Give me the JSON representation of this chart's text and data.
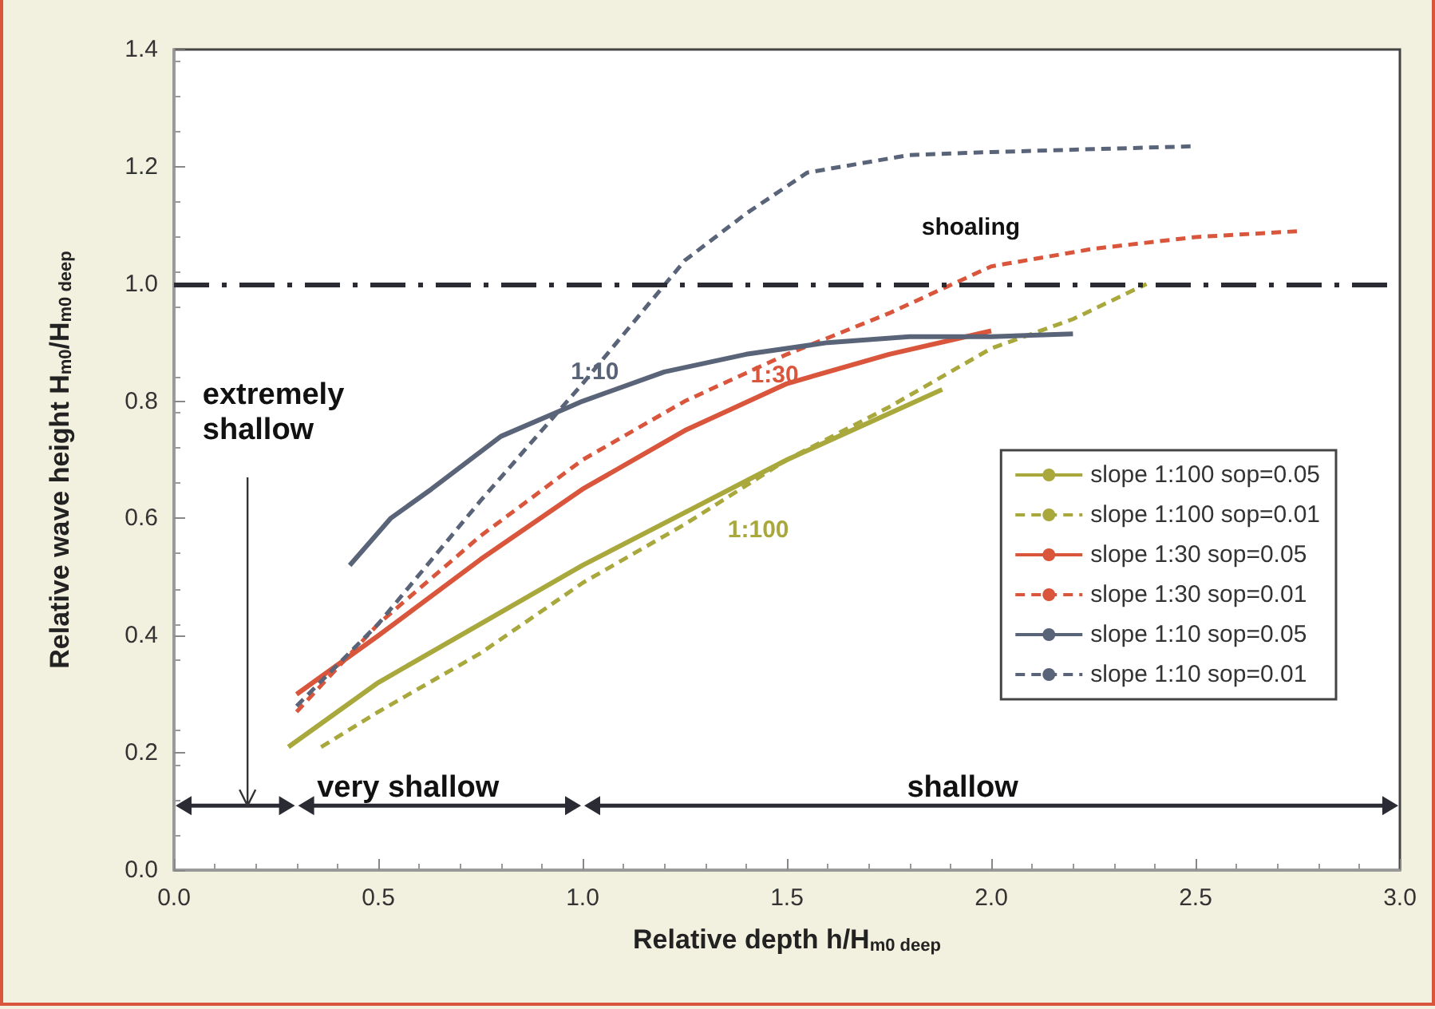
{
  "chart_data": {
    "type": "line",
    "xlabel": "Relative depth h/H$_{m0 deep}$",
    "ylabel": "Relative wave height H$_{m0}$/H$_{m0 deep}$",
    "xlim": [
      0,
      3
    ],
    "ylim": [
      0,
      1.4
    ],
    "xticks": [
      {
        "value": 0,
        "label": "0.0"
      },
      {
        "value": 0.5,
        "label": "0.5"
      },
      {
        "value": 1,
        "label": "1.0"
      },
      {
        "value": 1.5,
        "label": "1.5"
      },
      {
        "value": 2,
        "label": "2.0"
      },
      {
        "value": 2.5,
        "label": "2.5"
      },
      {
        "value": 3,
        "label": "3.0"
      }
    ],
    "yticks": [
      {
        "value": 0,
        "label": "0.0"
      },
      {
        "value": 0.2,
        "label": "0.2"
      },
      {
        "value": 0.4,
        "label": "0.4"
      },
      {
        "value": 0.6,
        "label": "0.6"
      },
      {
        "value": 0.8,
        "label": "0.8"
      },
      {
        "value": 1,
        "label": "1.0"
      },
      {
        "value": 1.2,
        "label": "1.2"
      },
      {
        "value": 1.4,
        "label": "1.4"
      }
    ],
    "grid": false,
    "legend": "right",
    "marker": "none",
    "series": [
      {
        "name": "slope 1:100 sop=0.05",
        "color": "#a8a83c",
        "line_style": "solid",
        "x": [
          0.28,
          0.5,
          0.75,
          1.0,
          1.25,
          1.5,
          1.88
        ],
        "values": [
          0.21,
          0.32,
          0.42,
          0.52,
          0.61,
          0.7,
          0.82
        ]
      },
      {
        "name": "slope 1:100 sop=0.01",
        "color": "#a8a83c",
        "line_style": "dashed",
        "x": [
          0.36,
          0.5,
          0.75,
          1.0,
          1.25,
          1.5,
          1.75,
          2.0,
          2.2,
          2.38
        ],
        "values": [
          0.21,
          0.27,
          0.37,
          0.49,
          0.59,
          0.7,
          0.79,
          0.89,
          0.94,
          1.0
        ]
      },
      {
        "name": "slope 1:30 sop=0.05",
        "color": "#d9553b",
        "line_style": "solid",
        "x": [
          0.3,
          0.5,
          0.75,
          1.0,
          1.25,
          1.5,
          1.75,
          2.0
        ],
        "values": [
          0.3,
          0.4,
          0.53,
          0.65,
          0.75,
          0.83,
          0.88,
          0.92
        ]
      },
      {
        "name": "slope 1:30 sop=0.01",
        "color": "#d9553b",
        "line_style": "dashed",
        "x": [
          0.3,
          0.5,
          0.75,
          1.0,
          1.25,
          1.5,
          1.75,
          2.0,
          2.25,
          2.5,
          2.75
        ],
        "values": [
          0.27,
          0.42,
          0.57,
          0.7,
          0.8,
          0.88,
          0.95,
          1.03,
          1.06,
          1.08,
          1.09
        ]
      },
      {
        "name": "slope 1:10 sop=0.05",
        "color": "#5a6478",
        "line_style": "solid",
        "x": [
          0.43,
          0.53,
          0.63,
          0.8,
          1.0,
          1.2,
          1.4,
          1.6,
          1.8,
          2.0,
          2.2
        ],
        "values": [
          0.52,
          0.6,
          0.65,
          0.74,
          0.8,
          0.85,
          0.88,
          0.9,
          0.91,
          0.91,
          0.915
        ]
      },
      {
        "name": "slope 1:10 sop=0.01",
        "color": "#5a6478",
        "line_style": "dashed",
        "x": [
          0.3,
          0.5,
          0.75,
          1.0,
          1.25,
          1.4,
          1.55,
          1.8,
          2.0,
          2.25,
          2.5
        ],
        "values": [
          0.28,
          0.42,
          0.63,
          0.83,
          1.04,
          1.12,
          1.19,
          1.22,
          1.225,
          1.23,
          1.235
        ]
      }
    ],
    "ref_lines": [
      {
        "axis": "y",
        "value": 1,
        "color": "#2b2b33",
        "line_style": "dashdot"
      }
    ],
    "annotations": [
      "extremely shallow",
      "very shallow",
      "shallow",
      "shoaling",
      {
        "text": "1:10",
        "x": 1.03,
        "y": 0.85
      },
      "1:30",
      "1:100"
    ]
  }
}
